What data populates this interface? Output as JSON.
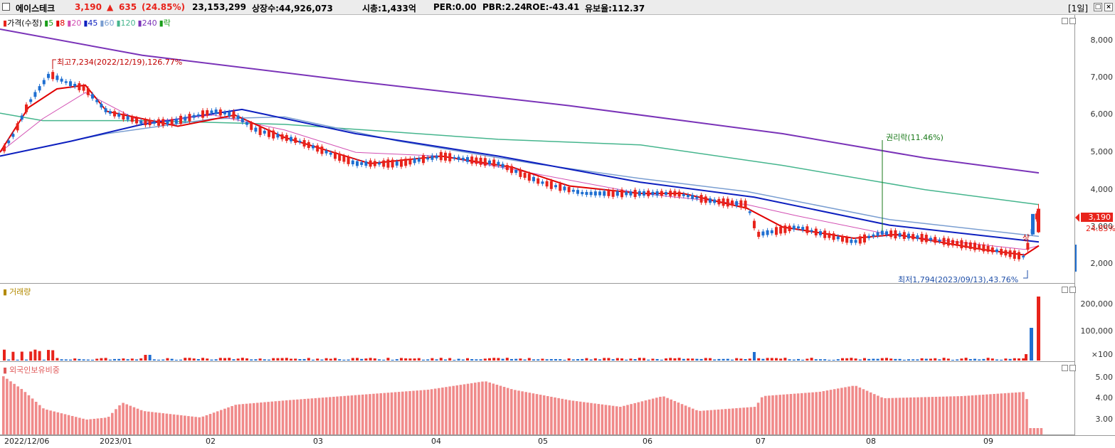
{
  "header": {
    "stock_name": "에이스테크",
    "price": "3,190",
    "change_arrow": "▲",
    "change": "635",
    "change_pct": "(24.85%)",
    "volume": "23,153,299",
    "listed_shares": "상장수:44,926,073",
    "market_cap": "시총:1,433억",
    "per": "PER:0.00",
    "pbr": "PBR:2.24",
    "roe": "ROE:-43.41",
    "reserve_ratio": "유보율:112.37",
    "period": "[1일]",
    "restore_glyph": "□",
    "close_glyph": "×"
  },
  "colors": {
    "up": "#e8231b",
    "down": "#1f6fd1",
    "ma5": "#1a9e1a",
    "ma8": "#e00000",
    "ma20": "#d24fb3",
    "ma45": "#0d1fbf",
    "ma60": "#7a9ed1",
    "ma120": "#45b58d",
    "ma240": "#7a33b8",
    "foreign": "#f08a8a"
  },
  "price_panel": {
    "legend": [
      {
        "label": "가격(수정)",
        "color": "#e8231b"
      },
      {
        "label": "5",
        "color": "#1a9e1a"
      },
      {
        "label": "8",
        "color": "#e00000"
      },
      {
        "label": "20",
        "color": "#d24fb3"
      },
      {
        "label": "45",
        "color": "#0d1fbf"
      },
      {
        "label": "60",
        "color": "#7a9ed1"
      },
      {
        "label": "120",
        "color": "#45b58d"
      },
      {
        "label": "240",
        "color": "#7a33b8"
      },
      {
        "label": "락",
        "color": "#1a9e1a"
      }
    ],
    "y_ticks": [
      "8,000",
      "7,000",
      "6,000",
      "5,000",
      "4,000",
      "3,000",
      "2,000"
    ],
    "current_price_tag": "3,190",
    "current_pct_tag": "24.85%",
    "high_annotation": "최고7,234(2022/12/19),126.77%",
    "low_annotation": "최저1,794(2023/09/13),43.76%",
    "rights_annotation": "권리락(11.46%)",
    "marker_label": "상"
  },
  "volume_panel": {
    "legend": "거래량",
    "y_ticks": [
      "200,000",
      "100,000",
      "×100"
    ]
  },
  "foreign_panel": {
    "legend": "외국인보유비중",
    "y_ticks": [
      "5.00",
      "4.00",
      "3.00"
    ]
  },
  "x_axis_labels": [
    "2022/12/06",
    "2023/01",
    "02",
    "03",
    "04",
    "05",
    "06",
    "07",
    "08",
    "09"
  ]
}
